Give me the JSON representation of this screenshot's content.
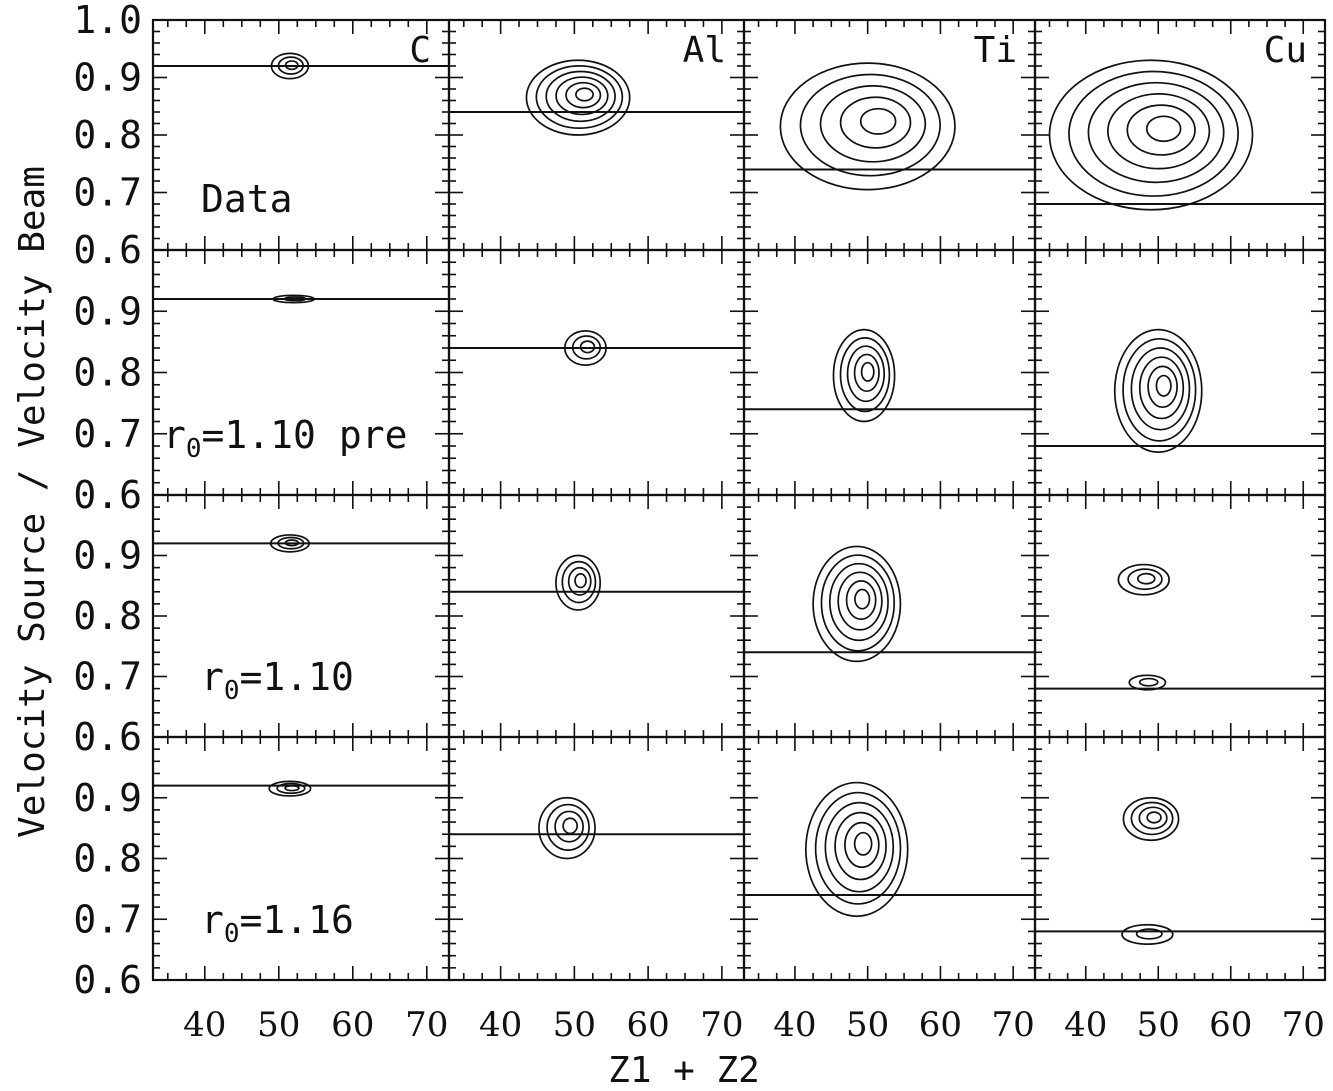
{
  "chart_data": {
    "type": "contour",
    "xlabel": "Z1 + Z2",
    "ylabel": "Velocity Source / Velocity Beam",
    "xlim": [
      33,
      73
    ],
    "ylim": [
      0.6,
      1.0
    ],
    "x_ticks": [
      "40",
      "50",
      "60",
      "70"
    ],
    "y_ticks": [
      "0.6",
      "0.7",
      "0.8",
      "0.9",
      "1.0"
    ],
    "columns": [
      "C",
      "Al",
      "Ti",
      "Cu"
    ],
    "rows": [
      {
        "label_main": "Data",
        "label_sub": "",
        "label_suffix": ""
      },
      {
        "label_main": "r",
        "label_sub": "0",
        "label_suffix": "=1.10 pre"
      },
      {
        "label_main": "r",
        "label_sub": "0",
        "label_suffix": "=1.10"
      },
      {
        "label_main": "r",
        "label_sub": "0",
        "label_suffix": "=1.16"
      }
    ],
    "reference_lines": {
      "C": 0.92,
      "Al": 0.84,
      "Ti": 0.74,
      "Cu": 0.68
    },
    "peaks": [
      [
        {
          "cx": 51.5,
          "cy": 0.92,
          "rx": 2.5,
          "ry": 0.022,
          "levels": 3
        },
        {
          "cx": 50.5,
          "cy": 0.865,
          "rx": 7.0,
          "ry": 0.065,
          "levels": 6
        },
        {
          "cx": 50.0,
          "cy": 0.815,
          "rx": 12.0,
          "ry": 0.11,
          "levels": 5
        },
        {
          "cx": 49.0,
          "cy": 0.8,
          "rx": 14.0,
          "ry": 0.13,
          "levels": 6
        }
      ],
      [
        {
          "cx": 52.0,
          "cy": 0.92,
          "rx": 2.8,
          "ry": 0.006,
          "levels": 2
        },
        {
          "cx": 51.5,
          "cy": 0.84,
          "rx": 2.8,
          "ry": 0.028,
          "levels": 3
        },
        {
          "cx": 49.5,
          "cy": 0.795,
          "rx": 4.2,
          "ry": 0.075,
          "levels": 5
        },
        {
          "cx": 50.0,
          "cy": 0.77,
          "rx": 6.0,
          "ry": 0.1,
          "levels": 6
        }
      ],
      [
        {
          "cx": 51.5,
          "cy": 0.92,
          "rx": 2.6,
          "ry": 0.014,
          "levels": 3
        },
        {
          "cx": 50.5,
          "cy": 0.855,
          "rx": 3.0,
          "ry": 0.045,
          "levels": 4
        },
        {
          "cx": 48.5,
          "cy": 0.82,
          "rx": 6.0,
          "ry": 0.095,
          "levels": 6
        },
        {
          "cx": 48.0,
          "cy": 0.86,
          "rx": 3.5,
          "ry": 0.025,
          "levels": 3
        }
      ],
      [
        {
          "cx": 51.5,
          "cy": 0.915,
          "rx": 2.8,
          "ry": 0.012,
          "levels": 3
        },
        {
          "cx": 49.0,
          "cy": 0.85,
          "rx": 3.8,
          "ry": 0.05,
          "levels": 4
        },
        {
          "cx": 48.5,
          "cy": 0.815,
          "rx": 7.0,
          "ry": 0.11,
          "levels": 6
        },
        {
          "cx": 49.0,
          "cy": 0.865,
          "rx": 3.8,
          "ry": 0.035,
          "levels": 4
        }
      ]
    ],
    "secondary_peaks": [
      {
        "row": 2,
        "col": 3,
        "cx": 48.5,
        "cy": 0.69,
        "rx": 2.5,
        "ry": 0.012,
        "levels": 2
      },
      {
        "row": 3,
        "col": 3,
        "cx": 48.5,
        "cy": 0.675,
        "rx": 3.5,
        "ry": 0.016,
        "levels": 2
      }
    ]
  }
}
